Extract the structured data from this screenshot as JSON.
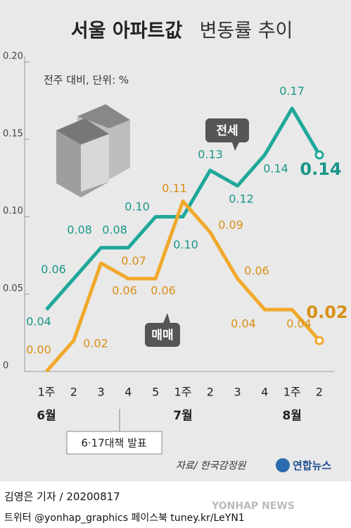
{
  "chart_data": {
    "type": "line",
    "title": "서울 아파트값",
    "title_light": "변동률 추이",
    "subtitle": "전주 대비, 단위: %",
    "categories": [
      "1주",
      "2",
      "3",
      "4",
      "5",
      "1주",
      "2",
      "3",
      "4",
      "1주",
      "2"
    ],
    "months": [
      "6월",
      "7월",
      "8월"
    ],
    "ylim": [
      0,
      0.2
    ],
    "yticks": [
      0,
      0.05,
      {
        "value": 0.1,
        "label": "0.10"
      },
      0.15,
      {
        "value": 0.2,
        "label": "0.20"
      }
    ],
    "series": [
      {
        "name": "전세",
        "color": "#1fa89a",
        "values": [
          0.04,
          0.06,
          0.08,
          0.08,
          0.1,
          0.1,
          0.13,
          0.12,
          0.14,
          0.17,
          0.14
        ],
        "value_labels": [
          "0.04",
          "0.06",
          "0.08",
          "0.08",
          "0.10",
          "0.10",
          "0.13",
          "0.12",
          "0.14",
          "0.17",
          "0.14"
        ]
      },
      {
        "name": "매매",
        "color": "#f0a92c",
        "values": [
          0.0,
          0.02,
          0.07,
          0.06,
          0.06,
          0.11,
          0.09,
          0.06,
          0.04,
          0.04,
          0.02
        ],
        "value_labels": [
          "0.00",
          "0.02",
          "0.07",
          "0.06",
          "0.06",
          "0.11",
          "0.09",
          "0.06",
          "0.04",
          "0.04",
          "0.02"
        ]
      }
    ],
    "annotation": "6·17대책 발표",
    "source": "자료/ 한국감정원",
    "logo": "연합뉴스",
    "byline": "김영은 기자 / 20200817",
    "social": "트위터 @yonhap_graphics  페이스북 tuney.kr/LeYN1",
    "watermark": "YONHAP NEWS"
  }
}
